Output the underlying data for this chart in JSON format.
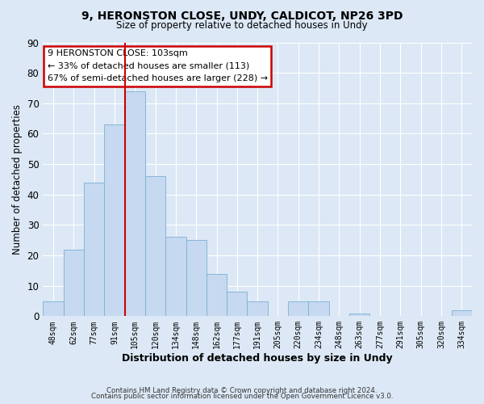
{
  "title1": "9, HERONSTON CLOSE, UNDY, CALDICOT, NP26 3PD",
  "title2": "Size of property relative to detached houses in Undy",
  "xlabel": "Distribution of detached houses by size in Undy",
  "ylabel": "Number of detached properties",
  "bar_labels": [
    "48sqm",
    "62sqm",
    "77sqm",
    "91sqm",
    "105sqm",
    "120sqm",
    "134sqm",
    "148sqm",
    "162sqm",
    "177sqm",
    "191sqm",
    "205sqm",
    "220sqm",
    "234sqm",
    "248sqm",
    "263sqm",
    "277sqm",
    "291sqm",
    "305sqm",
    "320sqm",
    "334sqm"
  ],
  "bar_values": [
    5,
    22,
    44,
    63,
    74,
    46,
    26,
    25,
    14,
    8,
    5,
    0,
    5,
    5,
    0,
    1,
    0,
    0,
    0,
    0,
    2
  ],
  "bar_color": "#c6d9f0",
  "bar_edge_color": "#7bafd4",
  "vline_color": "#cc0000",
  "ylim": [
    0,
    90
  ],
  "yticks": [
    0,
    10,
    20,
    30,
    40,
    50,
    60,
    70,
    80,
    90
  ],
  "annotation_title": "9 HERONSTON CLOSE: 103sqm",
  "annotation_line1": "← 33% of detached houses are smaller (113)",
  "annotation_line2": "67% of semi-detached houses are larger (228) →",
  "annotation_box_color": "#ffffff",
  "annotation_box_edge": "#cc0000",
  "footer1": "Contains HM Land Registry data © Crown copyright and database right 2024.",
  "footer2": "Contains public sector information licensed under the Open Government Licence v3.0.",
  "background_color": "#dce8f5",
  "plot_background": "#dce8f5",
  "grid_color": "#ffffff"
}
